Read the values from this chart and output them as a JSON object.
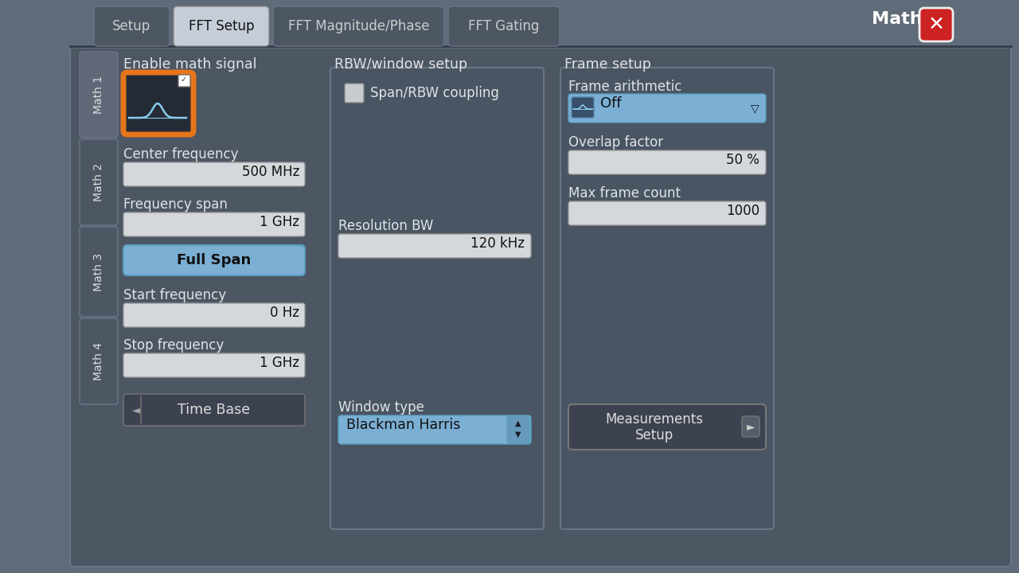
{
  "bg_color": "#5f6b78",
  "panel_color": "#4d5663",
  "tab_labels": [
    "Setup",
    "FFT Setup",
    "FFT Magnitude/Phase",
    "FFT Gating"
  ],
  "tab_active_index": 1,
  "math_label": "Math",
  "sidebar_labels": [
    "Math 1",
    "Math 2",
    "Math 3",
    "Math 4"
  ],
  "section1_title": "Enable math signal",
  "section2_title": "RBW/window setup",
  "section3_title": "Frame setup",
  "center_freq_label": "Center frequency",
  "center_freq_value": "500 MHz",
  "freq_span_label": "Frequency span",
  "freq_span_value": "1 GHz",
  "full_span_label": "Full Span",
  "start_freq_label": "Start frequency",
  "start_freq_value": "0 Hz",
  "stop_freq_label": "Stop frequency",
  "stop_freq_value": "1 GHz",
  "time_base_label": "Time Base",
  "span_rbw_label": "Span/RBW coupling",
  "res_bw_label": "Resolution BW",
  "res_bw_value": "120 kHz",
  "window_type_label": "Window type",
  "window_type_value": "Blackman Harris",
  "frame_arith_label": "Frame arithmetic",
  "frame_arith_value": "Off",
  "overlap_label": "Overlap factor",
  "overlap_value": "50 %",
  "max_frame_label": "Max frame count",
  "max_frame_value": "1000",
  "meas_setup_label": "Measurements\nSetup",
  "input_bg": "#d4d8dc",
  "input_border": "#999999",
  "button_blue_bg": "#7bafd4",
  "button_blue_border": "#5a9ec0",
  "button_dark_bg": "#3c4250",
  "button_dark_border": "#777777",
  "dropdown_blue_bg": "#7bafd4",
  "rbw_box_bg": "#495562",
  "rbw_box_border": "#6a7585",
  "frame_box_bg": "#495562",
  "frame_box_border": "#6a7585",
  "orange_color": "#e8751a",
  "orange_border": "#ff9944",
  "red_btn_bg": "#cc2222",
  "sidebar_active_bg": "#5f6b78",
  "sidebar_inactive_bg": "#4d5663",
  "sidebar_border": "#6a7585",
  "icon_bg": "#252b35",
  "icon_wave_color": "#88ccee",
  "tab_active_bg": "#c5cdd8",
  "tab_active_fg": "#111111",
  "tab_inactive_bg": "#4d5663",
  "tab_inactive_fg": "#cccccc",
  "tab_border": "#6a7585",
  "text_light": "#e0e4e8",
  "text_dark": "#111111",
  "text_mid": "#cccccc"
}
